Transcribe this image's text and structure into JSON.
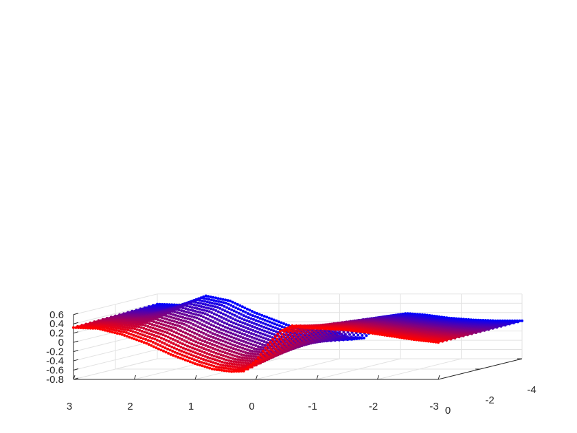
{
  "chart_data": {
    "type": "scatter",
    "title": "",
    "xlabel": "",
    "ylabel": "",
    "zlabel": "",
    "x_range": [
      -3,
      3
    ],
    "y_range": [
      -4,
      0
    ],
    "z_range": [
      -0.8,
      0.6
    ],
    "x_ticks": [
      "3",
      "2",
      "1",
      "0",
      "-1",
      "-2",
      "-3"
    ],
    "y_ticks": [
      "0",
      "-2",
      "-4"
    ],
    "z_ticks": [
      "0.6",
      "0.4",
      "0.2",
      "0",
      "-0.2",
      "-0.4",
      "-0.6",
      "-0.8"
    ],
    "grid": true,
    "colormap": {
      "near": "#ff0000",
      "far": "#0000ff"
    },
    "series_shape": "surface point cloud, 21 slices along y from 0 to -4",
    "profile_x": [
      3.0,
      2.6,
      2.2,
      1.8,
      1.4,
      1.0,
      0.7,
      0.4,
      0.2,
      0.0,
      -0.2,
      -0.4,
      -0.6,
      -0.8,
      -1.1,
      -1.4,
      -1.8,
      -2.2,
      -2.6,
      -3.0
    ],
    "profile_z_front": [
      0.32,
      0.3,
      0.17,
      -0.02,
      -0.26,
      -0.46,
      -0.58,
      -0.63,
      -0.62,
      -0.4,
      -0.05,
      0.24,
      0.36,
      0.32,
      0.3,
      0.28,
      0.22,
      0.14,
      0.06,
      0.0
    ],
    "profile_z_back": [
      0.38,
      0.36,
      0.56,
      0.45,
      0.2,
      0.0,
      -0.15,
      -0.2,
      -0.2,
      -0.25,
      -0.38,
      -0.35,
      -0.1,
      0.12,
      0.18,
      0.15,
      0.08,
      0.04,
      0.02,
      0.02
    ]
  }
}
